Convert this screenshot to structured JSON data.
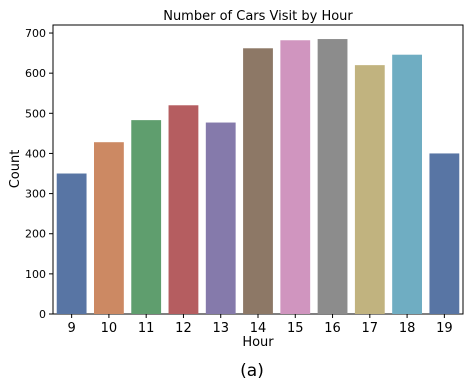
{
  "chart_data": {
    "type": "bar",
    "title": "Number of Cars Visit by Hour",
    "xlabel": "Hour",
    "ylabel": "Count",
    "categories": [
      "9",
      "10",
      "11",
      "12",
      "13",
      "14",
      "15",
      "16",
      "17",
      "18",
      "19"
    ],
    "values": [
      350,
      428,
      483,
      520,
      477,
      662,
      682,
      685,
      620,
      646,
      400
    ],
    "ylim": [
      0,
      720
    ],
    "yticks": [
      0,
      100,
      200,
      300,
      400,
      500,
      600,
      700
    ],
    "grid": false,
    "legend": "none",
    "colors": [
      "#5875a4",
      "#cc8963",
      "#5f9e6e",
      "#b55d60",
      "#857aab",
      "#8d7866",
      "#d095bf",
      "#8c8c8c",
      "#c1b37f",
      "#6fadc2",
      "#5875a4"
    ]
  },
  "caption": "(a)"
}
